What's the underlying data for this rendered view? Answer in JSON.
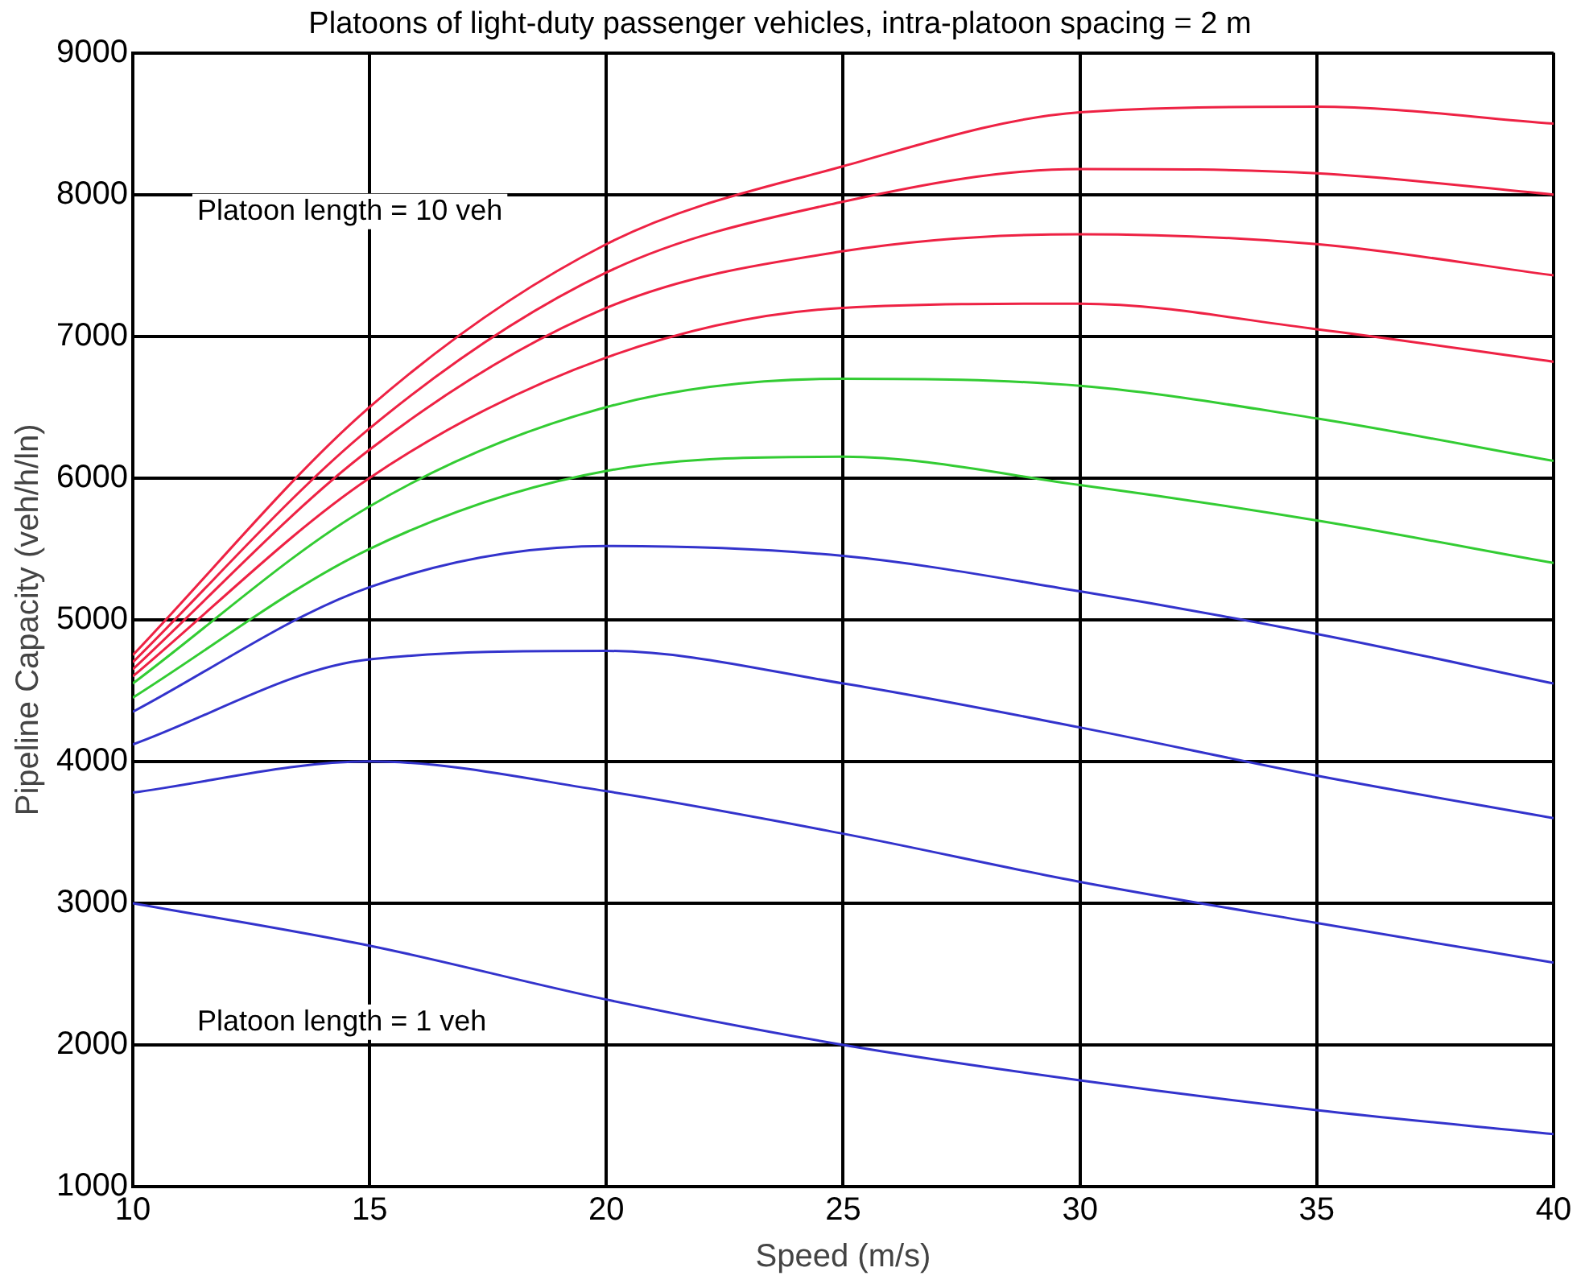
{
  "chart_data": {
    "type": "line",
    "title": "Platoons of light-duty passenger vehicles, intra-platoon spacing = 2 m",
    "xlabel": "Speed (m/s)",
    "ylabel": "Pipeline Capacity (veh/h/ln)",
    "x": [
      10,
      15,
      20,
      25,
      30,
      35,
      40
    ],
    "series": [
      {
        "color": "#3333cc",
        "values": [
          3000,
          2700,
          2320,
          2000,
          1750,
          1540,
          1370
        ]
      },
      {
        "color": "#3333cc",
        "values": [
          3780,
          4000,
          3790,
          3490,
          3150,
          2860,
          2580
        ]
      },
      {
        "color": "#3333cc",
        "values": [
          4120,
          4720,
          4780,
          4550,
          4240,
          3900,
          3600
        ]
      },
      {
        "color": "#3333cc",
        "values": [
          4350,
          5230,
          5520,
          5450,
          5200,
          4900,
          4550
        ]
      },
      {
        "color": "#33cc33",
        "values": [
          4450,
          5500,
          6050,
          6150,
          5950,
          5700,
          5400
        ]
      },
      {
        "color": "#33cc33",
        "values": [
          4550,
          5800,
          6500,
          6700,
          6650,
          6420,
          6120
        ]
      },
      {
        "color": "#ee2244",
        "values": [
          4600,
          6000,
          6850,
          7200,
          7230,
          7050,
          6820
        ]
      },
      {
        "color": "#ee2244",
        "values": [
          4650,
          6200,
          7200,
          7600,
          7720,
          7650,
          7430
        ]
      },
      {
        "color": "#ee2244",
        "values": [
          4700,
          6350,
          7450,
          7950,
          8180,
          8150,
          8000
        ]
      },
      {
        "color": "#ee2244",
        "values": [
          4750,
          6500,
          7650,
          8200,
          8580,
          8620,
          8500
        ]
      }
    ],
    "xlim": [
      10,
      40
    ],
    "xticks": [
      10,
      15,
      20,
      25,
      30,
      35,
      40
    ],
    "ylim": [
      1000,
      9000
    ],
    "yticks": [
      1000,
      2000,
      3000,
      4000,
      5000,
      6000,
      7000,
      8000,
      9000
    ],
    "grid": true,
    "legend": false,
    "marker": "none",
    "line_style": "solid",
    "annotations": [
      "Platoon length = 10 veh",
      "Platoon length = 1 veh"
    ]
  }
}
